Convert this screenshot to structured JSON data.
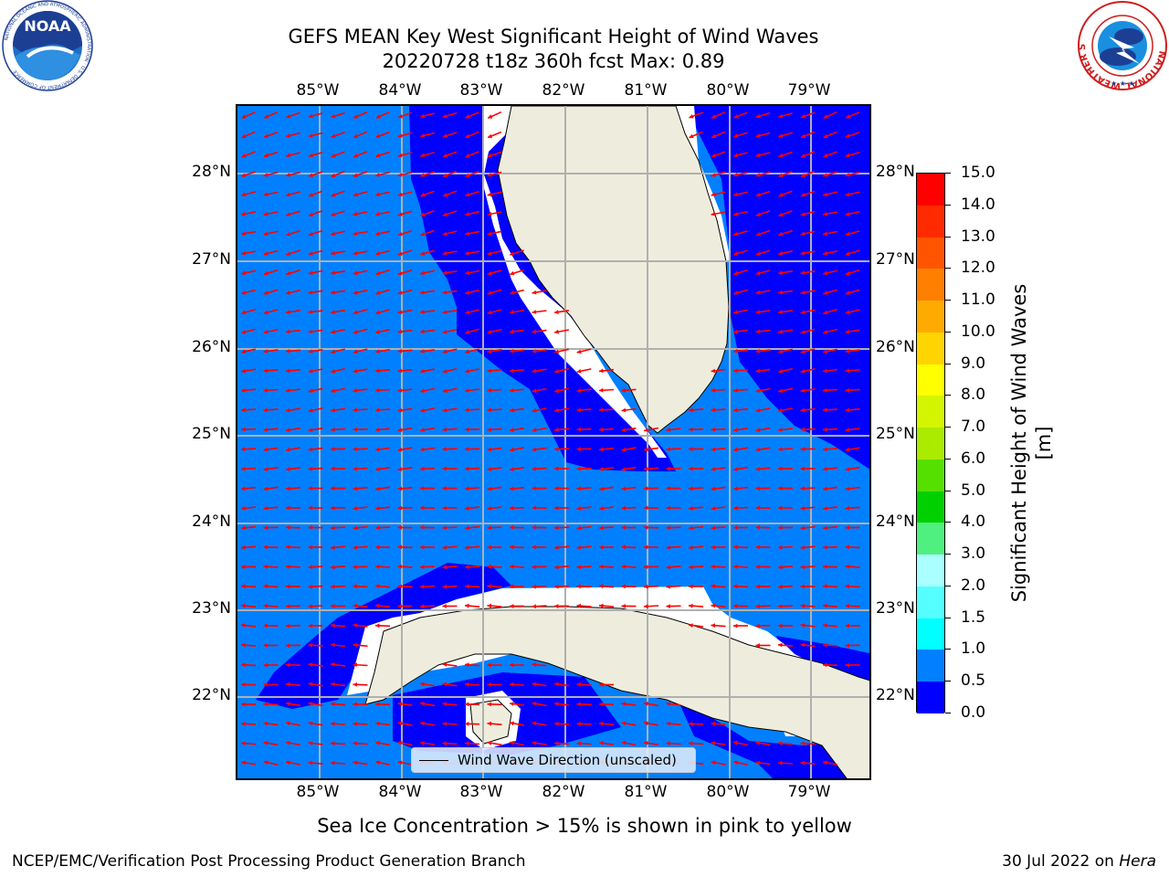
{
  "header": {
    "title_line1": "GEFS MEAN Key West Significant Height of Wind Waves",
    "title_line2": "20220728 t18z 360h fcst   Max: 0.89"
  },
  "axes": {
    "lon_labels": [
      "85°W",
      "84°W",
      "83°W",
      "82°W",
      "81°W",
      "80°W",
      "79°W"
    ],
    "lat_labels": [
      "28°N",
      "27°N",
      "26°N",
      "25°N",
      "24°N",
      "23°N",
      "22°N"
    ],
    "lon_range": [
      "86.0°W",
      "78.3°W"
    ],
    "lat_range": [
      "21.0°N",
      "28.8°N"
    ]
  },
  "map_legend": {
    "label": "Wind Wave Direction (unscaled)"
  },
  "colorbar": {
    "title": "Significant Height of Wind Waves [m]",
    "ticks": [
      "15.0",
      "14.0",
      "13.0",
      "12.0",
      "11.0",
      "10.0",
      "9.0",
      "8.0",
      "7.0",
      "6.0",
      "5.0",
      "4.0",
      "3.0",
      "2.0",
      "1.5",
      "1.0",
      "0.5",
      "0.0"
    ],
    "colors": [
      "#ff0000",
      "#ff2a00",
      "#ff5500",
      "#ff7f00",
      "#ffaa00",
      "#ffd400",
      "#ffff00",
      "#d4f500",
      "#aaeb00",
      "#55e000",
      "#00d000",
      "#50f080",
      "#aaffff",
      "#55ffff",
      "#00ffff",
      "#0080ff",
      "#0000ff"
    ]
  },
  "colors": {
    "ocean_low": "#0000ff",
    "ocean_mid": "#0080ff",
    "land": "#eeeddd",
    "arrow": "#ff0000",
    "gridline": "#b0b0b0"
  },
  "notes": {
    "ice_note": "Sea Ice Concentration > 15% is shown in pink to yellow"
  },
  "footer": {
    "left": "NCEP/EMC/Verification Post Processing Product Generation Branch",
    "right_prefix": "30 Jul 2022 on ",
    "right_host": "Hera"
  },
  "logos": {
    "noaa_text": "NOAA",
    "noaa_ring_text": "NATIONAL OCEANIC AND ATMOSPHERIC ADMINISTRATION · U.S. DEPARTMENT OF COMMERCE",
    "nws_ring_text": "NATIONAL WEATHER SERVICE"
  }
}
